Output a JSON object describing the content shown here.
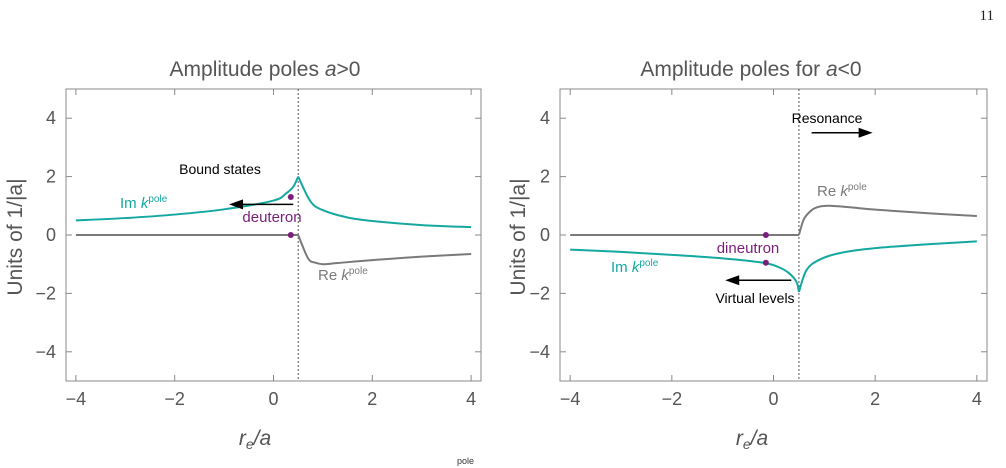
{
  "page_number": "11",
  "caption_fragment": "pole",
  "colors": {
    "im": "#14a8a0",
    "re": "#7a7a7a",
    "point": "#7a1f7a",
    "axis": "#555555",
    "frame": "#888888"
  },
  "chart_data": [
    {
      "type": "line",
      "title": "Amplitude poles a>0",
      "title_text": "Amplitude poles ",
      "title_var": "a",
      "title_rel": ">0",
      "xlabel_main": "r",
      "xlabel_sub": "e",
      "xlabel_rest": "/a",
      "ylabel": "Units of 1/|a|",
      "xlim": [
        -4.2,
        4.2
      ],
      "ylim": [
        -5,
        5
      ],
      "xticks": [
        -4,
        -2,
        0,
        2,
        4
      ],
      "xtick_labels": [
        "−4",
        "−2",
        "0",
        "2",
        "4"
      ],
      "yticks": [
        -4,
        -2,
        0,
        2,
        4
      ],
      "ytick_labels": [
        "−4",
        "−2",
        "0",
        "2",
        "4"
      ],
      "threshold_x": 0.5,
      "series": [
        {
          "name": "Im k^pole",
          "x": [
            -4,
            -3,
            -2,
            -1,
            0,
            0.25,
            0.4,
            0.5
          ],
          "y": [
            0.5,
            0.58,
            0.7,
            0.88,
            1.18,
            1.42,
            1.65,
            2.0
          ]
        },
        {
          "name": "Im k^pole",
          "x": [
            0.5,
            0.75,
            1,
            1.5,
            2,
            3,
            4
          ],
          "y": [
            2.0,
            1.15,
            0.85,
            0.6,
            0.48,
            0.34,
            0.27
          ]
        },
        {
          "name": "Re k^pole",
          "x": [
            -4,
            0.5
          ],
          "y": [
            0,
            0
          ]
        },
        {
          "name": "Re k^pole",
          "x": [
            0.5,
            0.7,
            0.85,
            1.0,
            1.3,
            2,
            3,
            4
          ],
          "y": [
            0,
            -0.8,
            -0.95,
            -1.0,
            -0.96,
            -0.86,
            -0.74,
            -0.65
          ]
        }
      ],
      "points": [
        {
          "x": 0.35,
          "y": 1.3
        },
        {
          "x": 0.35,
          "y": 0
        }
      ],
      "labels": {
        "im_name": "Im k",
        "im_sup": "pole",
        "re_name": "Re k",
        "re_sup": "pole",
        "point_label": "deuteron",
        "arrow_label": "Bound states"
      },
      "arrow": {
        "direction": "left",
        "from": [
          0.4,
          1.05
        ],
        "to": [
          -0.9,
          1.05
        ]
      }
    },
    {
      "type": "line",
      "title": "Amplitude poles for a<0",
      "title_text": "Amplitude poles for ",
      "title_var": "a",
      "title_rel": "<0",
      "xlabel_main": "r",
      "xlabel_sub": "e",
      "xlabel_rest": "/a",
      "ylabel": "Units of 1/|a|",
      "xlim": [
        -4.2,
        4.2
      ],
      "ylim": [
        -5,
        5
      ],
      "xticks": [
        -4,
        -2,
        0,
        2,
        4
      ],
      "xtick_labels": [
        "−4",
        "−2",
        "0",
        "2",
        "4"
      ],
      "yticks": [
        -4,
        -2,
        0,
        2,
        4
      ],
      "ytick_labels": [
        "−4",
        "−2",
        "0",
        "2",
        "4"
      ],
      "threshold_x": 0.5,
      "series": [
        {
          "name": "Re k^pole",
          "x": [
            -4,
            0.5
          ],
          "y": [
            0,
            0
          ]
        },
        {
          "name": "Re k^pole",
          "x": [
            0.5,
            0.6,
            0.75,
            0.9,
            1.1,
            1.5,
            2,
            3,
            4
          ],
          "y": [
            0,
            0.55,
            0.85,
            0.97,
            1.0,
            0.95,
            0.87,
            0.75,
            0.65
          ]
        },
        {
          "name": "Im k^pole",
          "x": [
            -4,
            -3,
            -2,
            -1,
            -0.2,
            0.1,
            0.3,
            0.45,
            0.5
          ],
          "y": [
            -0.5,
            -0.58,
            -0.68,
            -0.8,
            -0.95,
            -1.1,
            -1.3,
            -1.6,
            -1.95
          ]
        },
        {
          "name": "Im k^pole",
          "x": [
            0.5,
            0.65,
            0.9,
            1.3,
            2,
            3,
            4
          ],
          "y": [
            -1.95,
            -1.2,
            -0.85,
            -0.62,
            -0.45,
            -0.32,
            -0.22
          ]
        }
      ],
      "points": [
        {
          "x": -0.15,
          "y": 0
        },
        {
          "x": -0.15,
          "y": -0.95
        }
      ],
      "labels": {
        "im_name": "Im k",
        "im_sup": "pole",
        "re_name": "Re k",
        "re_sup": "pole",
        "point_label": "dineutron",
        "arrow_label": "Virtual levels",
        "arrow2_label": "Resonance"
      },
      "arrow": {
        "direction": "left",
        "from": [
          0.35,
          -1.55
        ],
        "to": [
          -0.95,
          -1.55
        ]
      },
      "arrow2": {
        "direction": "right",
        "from": [
          0.75,
          3.5
        ],
        "to": [
          1.95,
          3.5
        ]
      }
    }
  ]
}
